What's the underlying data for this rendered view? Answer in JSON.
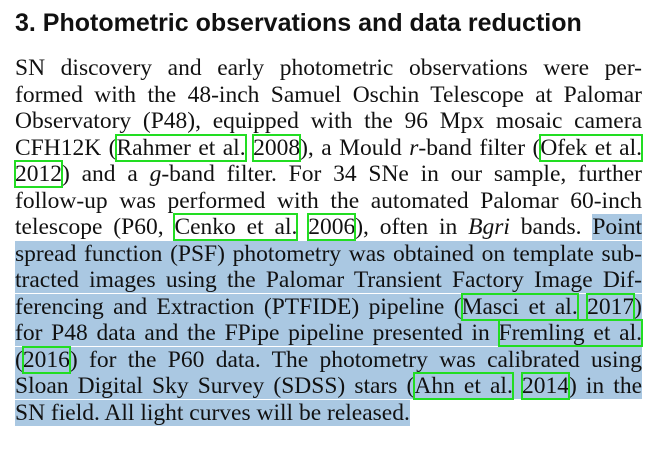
{
  "section": {
    "heading": "3. Photometric observations and data reduction"
  },
  "lines": [
    {
      "segs": [
        {
          "t": "SN discovery and early photometric observations were per-"
        }
      ]
    },
    {
      "segs": [
        {
          "t": "formed with the 48-inch Samuel Oschin Telescope at Palomar"
        }
      ]
    },
    {
      "segs": [
        {
          "t": "Observatory (P48), equipped with the 96 Mpx mosaic camera"
        }
      ]
    },
    {
      "segs": [
        {
          "t": "CFH12K ("
        },
        {
          "t": "Rahmer et al.",
          "c": true
        },
        {
          "t": " "
        },
        {
          "t": "2008",
          "c": true
        },
        {
          "t": "), a Mould "
        },
        {
          "t": "r",
          "i": true
        },
        {
          "t": "-band filter ("
        },
        {
          "t": "Ofek et al.",
          "c": true
        }
      ]
    },
    {
      "segs": [
        {
          "t": "2012",
          "c": true
        },
        {
          "t": ") and a "
        },
        {
          "t": "g",
          "i": true
        },
        {
          "t": "-band filter. For 34 SNe in our sample, further"
        }
      ]
    },
    {
      "segs": [
        {
          "t": "follow-up was performed with the automated Palomar 60-inch"
        }
      ]
    },
    {
      "segs": [
        {
          "t": "telescope (P60, "
        },
        {
          "t": "Cenko et al.",
          "c": true
        },
        {
          "t": " "
        },
        {
          "t": "2006",
          "c": true
        },
        {
          "t": "), often in "
        },
        {
          "t": "Bgri",
          "i": true
        },
        {
          "t": " bands. "
        },
        {
          "t": "Point",
          "h": true
        }
      ]
    },
    {
      "segs": [
        {
          "t": "spread function (PSF) photometry was obtained on template sub-",
          "h": true
        }
      ]
    },
    {
      "segs": [
        {
          "t": "tracted images using the Palomar Transient Factory Image Dif-",
          "h": true
        }
      ]
    },
    {
      "segs": [
        {
          "t": "ferencing and Extraction (PTFIDE) pipeline (",
          "h": true
        },
        {
          "t": "Masci et al.",
          "c": true,
          "h": true
        },
        {
          "t": " ",
          "h": true
        },
        {
          "t": "2017",
          "c": true,
          "h": true
        },
        {
          "t": ")",
          "h": true
        }
      ]
    },
    {
      "segs": [
        {
          "t": "for P48 data and the FPipe pipeline presented in ",
          "h": true
        },
        {
          "t": "Fremling et al.",
          "c": true,
          "h": true
        }
      ]
    },
    {
      "segs": [
        {
          "t": "(",
          "h": true
        },
        {
          "t": "2016",
          "c": true,
          "h": true
        },
        {
          "t": ") for the P60 data. The photometry was calibrated using",
          "h": true
        }
      ]
    },
    {
      "segs": [
        {
          "t": "Sloan Digital Sky Survey (SDSS) stars (",
          "h": true
        },
        {
          "t": "Ahn et al.",
          "c": true,
          "h": true
        },
        {
          "t": " ",
          "h": true
        },
        {
          "t": "2014",
          "c": true,
          "h": true
        },
        {
          "t": ") in the",
          "h": true
        }
      ]
    },
    {
      "segs": [
        {
          "t": "SN field. All light curves will be released.",
          "h": true
        }
      ],
      "last": true
    }
  ],
  "colors": {
    "citation_outline": "#22dd22",
    "selection_highlight": "#aac8e2",
    "text": "#111111"
  }
}
